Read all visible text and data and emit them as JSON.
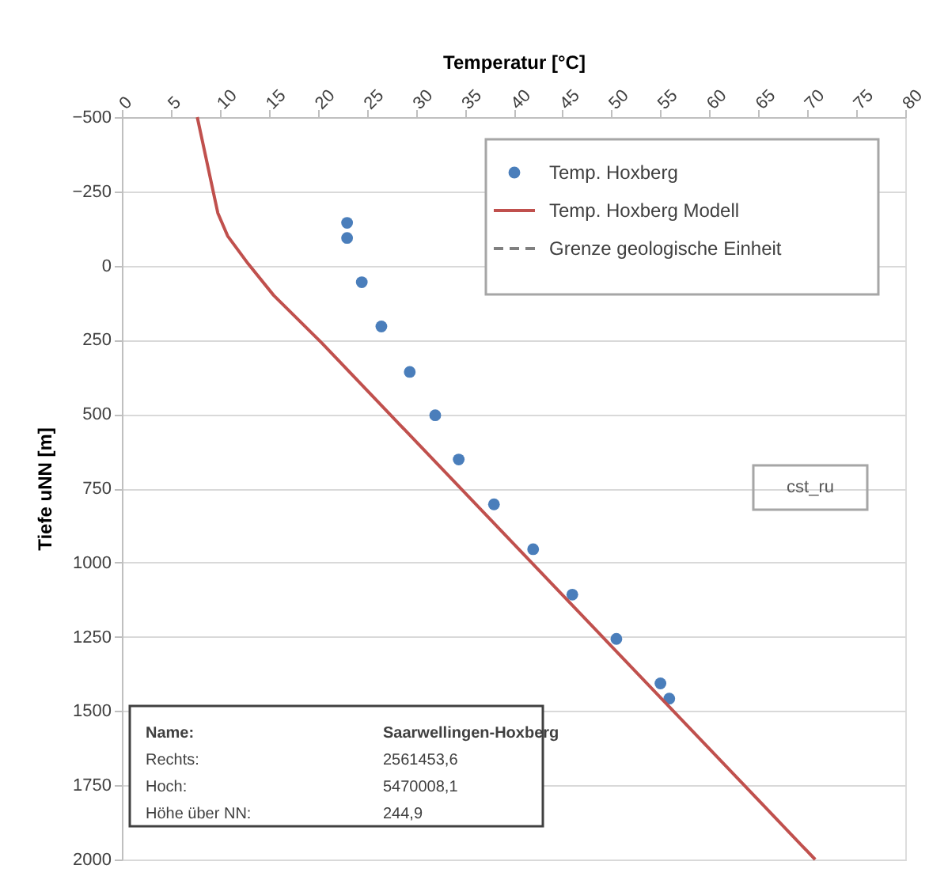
{
  "chart_data": {
    "type": "scatter",
    "xlabel": "Temperatur [°C]",
    "ylabel": "Tiefe uNN [m]",
    "xlim": [
      0,
      80
    ],
    "xticks": [
      0,
      5,
      10,
      15,
      20,
      25,
      30,
      35,
      40,
      45,
      50,
      55,
      60,
      65,
      70,
      75,
      80
    ],
    "ylim": [
      2000,
      -500
    ],
    "yticks": [
      -500,
      -250,
      0,
      250,
      500,
      750,
      1000,
      1250,
      1500,
      1750,
      2000
    ],
    "grid": "y",
    "legend": "top right",
    "series": [
      {
        "name": "Temp. Hoxberg",
        "color": "#4a7ebb",
        "marker": "circle",
        "x": [
          23.0,
          23.0,
          24.5,
          26.5,
          29.4,
          32.0,
          34.4,
          38.0,
          42.0,
          46.0,
          50.5,
          55.0,
          55.9
        ],
        "values": [
          -144,
          -93,
          56,
          205,
          358,
          504,
          653,
          804,
          955,
          1108,
          1257,
          1407,
          1458
        ]
      },
      {
        "name": "Temp. Hoxberg Modell",
        "type": "line",
        "color": "#c0504d",
        "line_style": "solid",
        "x": [
          7.7,
          9.8,
          10.8,
          12.9,
          15.5,
          20.4,
          70.8
        ],
        "values": [
          -500,
          -177,
          -100,
          -6,
          100,
          260,
          2000
        ]
      },
      {
        "name": "Grenze geologische Einheit",
        "type": "line",
        "color": "#808080",
        "line_style": "dashed"
      }
    ],
    "annotations": [
      "cst_ru",
      "Name:",
      "Saarwellingen-Hoxberg",
      "Rechts:",
      "2561453,6",
      "Hoch:",
      "5470008,1",
      "Höhe über NN:",
      "244,9"
    ]
  }
}
